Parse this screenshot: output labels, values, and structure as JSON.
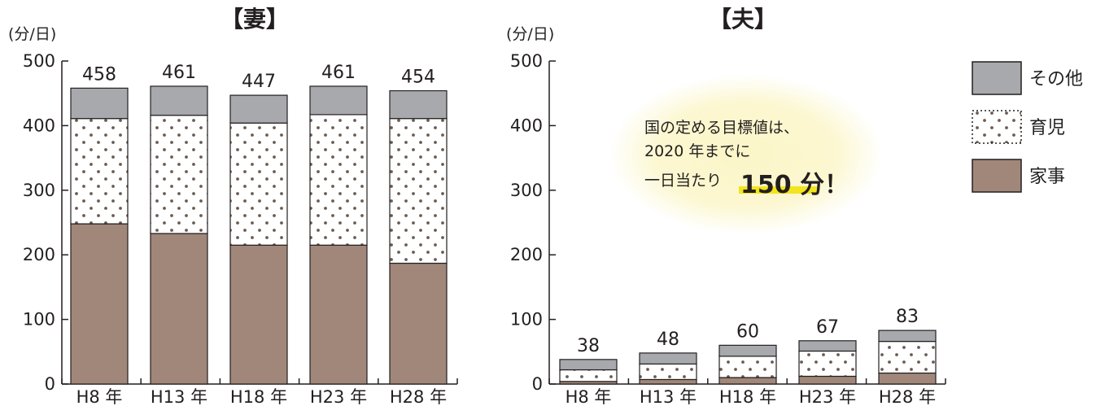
{
  "chart_data": [
    {
      "type": "bar",
      "stacked": true,
      "title": "【妻】",
      "ylabel": "(分/日)",
      "ylim": [
        0,
        500
      ],
      "yticks": [
        "0",
        "100",
        "200",
        "300",
        "400",
        "500"
      ],
      "categories": [
        "H8 年",
        "H13 年",
        "H18 年",
        "H23 年",
        "H28 年"
      ],
      "series": [
        {
          "name": "家事",
          "values": [
            248,
            233,
            215,
            215,
            187
          ]
        },
        {
          "name": "育児",
          "values": [
            163,
            183,
            189,
            202,
            224
          ]
        },
        {
          "name": "その他",
          "values": [
            47,
            45,
            43,
            44,
            43
          ]
        }
      ],
      "totals": [
        "458",
        "461",
        "447",
        "461",
        "454"
      ]
    },
    {
      "type": "bar",
      "stacked": true,
      "title": "【夫】",
      "ylabel": "(分/日)",
      "ylim": [
        0,
        500
      ],
      "yticks": [
        "0",
        "100",
        "200",
        "300",
        "400",
        "500"
      ],
      "categories": [
        "H8 年",
        "H13 年",
        "H18 年",
        "H23 年",
        "H28 年"
      ],
      "series": [
        {
          "name": "家事",
          "values": [
            4,
            7,
            10,
            12,
            17
          ]
        },
        {
          "name": "育児",
          "values": [
            18,
            24,
            33,
            39,
            49
          ]
        },
        {
          "name": "その他",
          "values": [
            16,
            17,
            17,
            16,
            17
          ]
        }
      ],
      "totals": [
        "38",
        "48",
        "60",
        "67",
        "83"
      ]
    }
  ],
  "legend": {
    "placement": "right",
    "items": [
      {
        "label": "その他",
        "pattern": "solid-gray"
      },
      {
        "label": "育児",
        "pattern": "dots"
      },
      {
        "label": "家事",
        "pattern": "solid-brown"
      }
    ]
  },
  "callout": {
    "line1": "国の定める目標値は、",
    "line2": "2020 年までに",
    "line3": "一日当たり",
    "highlight": "150 分！"
  },
  "colors": {
    "housework": "#a0877a",
    "childcare_bg": "#ffffff",
    "childcare_dot": "#6b5b52",
    "other": "#a7a9ac",
    "outline": "#231f20",
    "callout_glow": "#fbf6c8",
    "highlight": "#f0e000"
  }
}
